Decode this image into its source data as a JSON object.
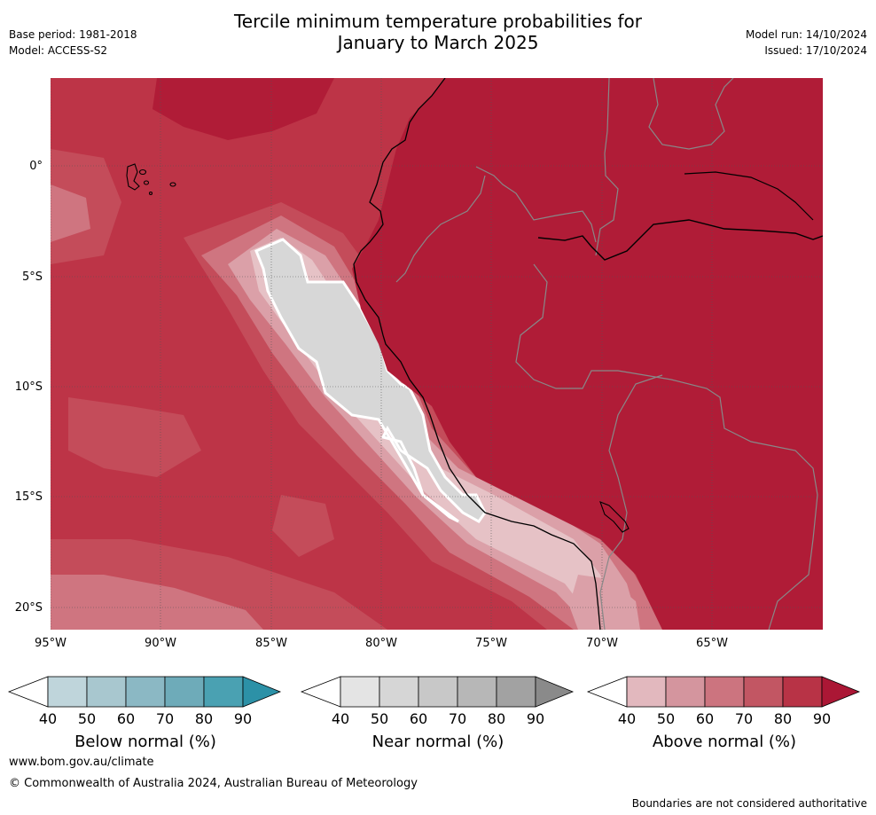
{
  "header": {
    "title_line1": "Tercile minimum temperature probabilities for",
    "title_line2": "January to March 2025",
    "base_period": "Base period: 1981-2018",
    "model": "Model: ACCESS-S2",
    "model_run": "Model run: 14/10/2024",
    "issued": "Issued: 17/10/2024"
  },
  "map": {
    "lat_labels": [
      "0°",
      "5°S",
      "10°S",
      "15°S",
      "20°S"
    ],
    "lon_labels": [
      "95°W",
      "90°W",
      "85°W",
      "80°W",
      "75°W",
      "70°W",
      "65°W"
    ],
    "colors": {
      "above_90": "#b01c37",
      "above_80": "#bd3447",
      "above_70": "#c44c5a",
      "above_60": "#cf7580",
      "above_50": "#dba0a8",
      "above_40": "#e6c2c6",
      "near_50": "#d7d7d7",
      "near_40": "#e5e5e5",
      "coast": "#000000",
      "border": "#888888"
    }
  },
  "colorbars": [
    {
      "name": "Below normal (%)",
      "ticks": [
        "40",
        "50",
        "60",
        "70",
        "80",
        "90"
      ],
      "colors": [
        "#ffffff",
        "#bfd5db",
        "#a8c7cf",
        "#8bb8c4",
        "#6eabb9",
        "#4aa1b2",
        "#2c91a7"
      ]
    },
    {
      "name": "Near normal (%)",
      "ticks": [
        "40",
        "50",
        "60",
        "70",
        "80",
        "90"
      ],
      "colors": [
        "#ffffff",
        "#e4e4e4",
        "#d6d6d6",
        "#c8c8c8",
        "#b7b7b7",
        "#a2a2a2",
        "#8a8a8a"
      ]
    },
    {
      "name": "Above normal (%)",
      "ticks": [
        "40",
        "50",
        "60",
        "70",
        "80",
        "90"
      ],
      "colors": [
        "#ffffff",
        "#e2b8be",
        "#d4959e",
        "#cc747f",
        "#c25663",
        "#b83346",
        "#ab1735"
      ]
    }
  ],
  "footer": {
    "website": "www.bom.gov.au/climate",
    "copyright": "© Commonwealth of Australia 2024, Australian Bureau of Meteorology",
    "disclaimer": "Boundaries are not considered authoritative"
  }
}
